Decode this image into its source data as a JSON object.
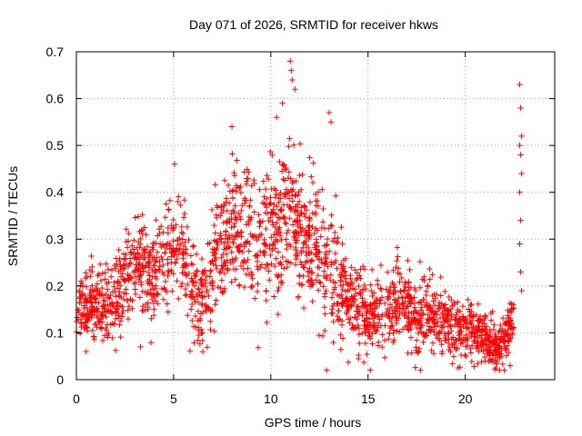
{
  "chart_data": {
    "type": "scatter",
    "title": "Day 071 of 2026, SRMTID for receiver hkws",
    "xlabel": "GPS time / hours",
    "ylabel": "SRMTID / TECUs",
    "xlim": [
      0,
      24.6
    ],
    "ylim": [
      0,
      0.7
    ],
    "x_ticks": [
      0,
      5,
      10,
      15,
      20
    ],
    "y_ticks": [
      0,
      0.1,
      0.2,
      0.3,
      0.4,
      0.5,
      0.6,
      0.7
    ],
    "x_tick_labels": [
      "0",
      "5",
      "10",
      "15",
      "20"
    ],
    "y_tick_labels": [
      "0",
      "0.1",
      "0.2",
      "0.3",
      "0.4",
      "0.5",
      "0.6",
      "0.7"
    ],
    "grid": true,
    "marker": "+",
    "marker_color": "#ff0000",
    "trend": [
      [
        0.0,
        0.14
      ],
      [
        0.5,
        0.15
      ],
      [
        1.0,
        0.16
      ],
      [
        1.5,
        0.15
      ],
      [
        2.0,
        0.17
      ],
      [
        2.5,
        0.21
      ],
      [
        3.0,
        0.25
      ],
      [
        3.5,
        0.23
      ],
      [
        4.0,
        0.22
      ],
      [
        4.5,
        0.24
      ],
      [
        5.0,
        0.28
      ],
      [
        5.5,
        0.27
      ],
      [
        6.0,
        0.18
      ],
      [
        6.5,
        0.16
      ],
      [
        7.0,
        0.24
      ],
      [
        7.5,
        0.29
      ],
      [
        8.0,
        0.33
      ],
      [
        8.5,
        0.31
      ],
      [
        9.0,
        0.3
      ],
      [
        9.5,
        0.31
      ],
      [
        10.0,
        0.32
      ],
      [
        10.5,
        0.33
      ],
      [
        11.0,
        0.36
      ],
      [
        11.5,
        0.32
      ],
      [
        12.0,
        0.3
      ],
      [
        12.5,
        0.27
      ],
      [
        13.0,
        0.24
      ],
      [
        13.5,
        0.19
      ],
      [
        14.0,
        0.17
      ],
      [
        14.5,
        0.15
      ],
      [
        15.0,
        0.13
      ],
      [
        15.5,
        0.14
      ],
      [
        16.0,
        0.15
      ],
      [
        16.5,
        0.17
      ],
      [
        17.0,
        0.17
      ],
      [
        17.5,
        0.12
      ],
      [
        18.0,
        0.15
      ],
      [
        18.5,
        0.13
      ],
      [
        19.0,
        0.12
      ],
      [
        19.5,
        0.11
      ],
      [
        20.0,
        0.11
      ],
      [
        20.5,
        0.1
      ],
      [
        21.0,
        0.09
      ],
      [
        21.5,
        0.07
      ],
      [
        22.0,
        0.08
      ],
      [
        22.5,
        0.14
      ]
    ],
    "spread": [
      [
        0.0,
        0.04
      ],
      [
        3.0,
        0.06
      ],
      [
        5.0,
        0.06
      ],
      [
        7.0,
        0.08
      ],
      [
        9.0,
        0.09
      ],
      [
        11.0,
        0.1
      ],
      [
        13.0,
        0.09
      ],
      [
        14.0,
        0.05
      ],
      [
        17.0,
        0.05
      ],
      [
        20.0,
        0.04
      ],
      [
        22.5,
        0.03
      ]
    ],
    "highlights": [
      {
        "x": 11.0,
        "y": 0.68
      },
      {
        "x": 11.05,
        "y": 0.66
      },
      {
        "x": 11.1,
        "y": 0.64
      },
      {
        "x": 10.6,
        "y": 0.59
      },
      {
        "x": 10.3,
        "y": 0.56
      },
      {
        "x": 13.0,
        "y": 0.57
      },
      {
        "x": 13.1,
        "y": 0.55
      },
      {
        "x": 8.0,
        "y": 0.54
      },
      {
        "x": 5.05,
        "y": 0.46
      },
      {
        "x": 22.8,
        "y": 0.63
      },
      {
        "x": 22.85,
        "y": 0.58
      },
      {
        "x": 22.9,
        "y": 0.52
      },
      {
        "x": 22.8,
        "y": 0.5
      },
      {
        "x": 22.85,
        "y": 0.48
      },
      {
        "x": 22.9,
        "y": 0.44
      },
      {
        "x": 22.8,
        "y": 0.4
      },
      {
        "x": 22.85,
        "y": 0.34
      },
      {
        "x": 22.8,
        "y": 0.29
      },
      {
        "x": 22.85,
        "y": 0.23
      },
      {
        "x": 22.9,
        "y": 0.19
      },
      {
        "x": 17.7,
        "y": 0.02
      },
      {
        "x": 0.5,
        "y": 0.06
      },
      {
        "x": 3.3,
        "y": 0.07
      }
    ],
    "point_count": 2200
  }
}
